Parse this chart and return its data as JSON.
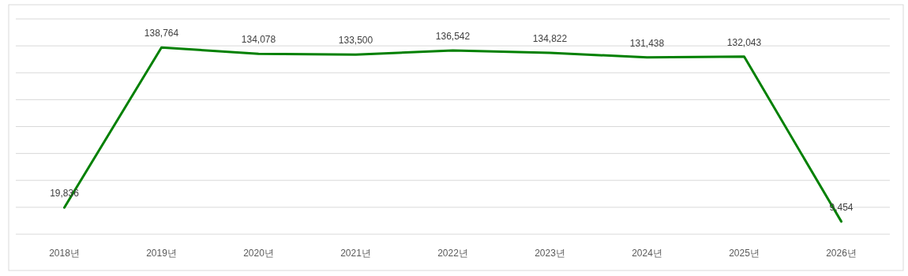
{
  "chart_data": {
    "type": "line",
    "categories": [
      "2018년",
      "2019년",
      "2020년",
      "2021년",
      "2022년",
      "2023년",
      "2024년",
      "2025년",
      "2026년"
    ],
    "series": [
      {
        "color": "#008000",
        "values": [
          19836,
          138764,
          134078,
          133500,
          136542,
          134822,
          131438,
          132043,
          9454
        ],
        "value_labels": [
          "19,836",
          "138,764",
          "134,078",
          "133,500",
          "136,542",
          "134,822",
          "131,438",
          "132,043",
          "9,454"
        ]
      }
    ],
    "ylim": [
      0,
      160000
    ],
    "yticks": [
      {
        "value": 0,
        "label": null
      },
      {
        "value": 20000,
        "label": null
      },
      {
        "value": 40000,
        "label": null
      },
      {
        "value": 60000,
        "label": null
      },
      {
        "value": 80000,
        "label": null
      },
      {
        "value": 100000,
        "label": null
      },
      {
        "value": 120000,
        "label": null
      },
      {
        "value": 140000,
        "label": null
      },
      {
        "value": 160000,
        "label": null
      }
    ],
    "tick_labels": "x",
    "grid": "y",
    "marker": "none",
    "line_style": "solid"
  }
}
